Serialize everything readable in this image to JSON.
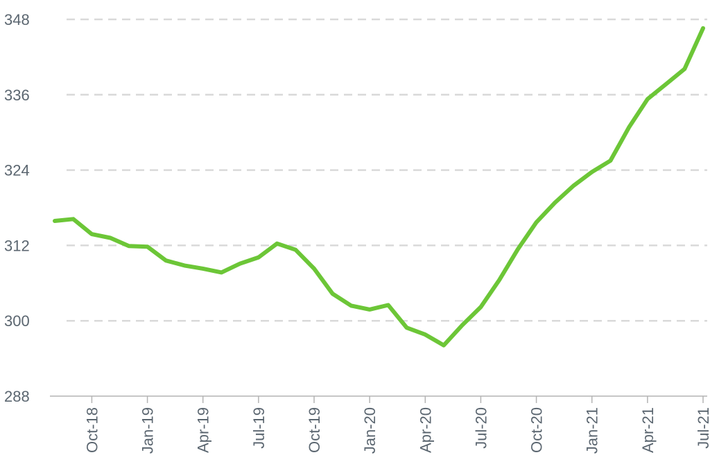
{
  "chart_data": {
    "type": "line",
    "title": "",
    "xlabel": "",
    "ylabel": "",
    "ylim": [
      288,
      348
    ],
    "yticks": [
      288,
      300,
      312,
      324,
      336,
      348
    ],
    "grid": true,
    "legend": "none",
    "xticks": [
      {
        "label": "Oct-18",
        "x": "2018-10"
      },
      {
        "label": "Jan-19",
        "x": "2019-01"
      },
      {
        "label": "Apr-19",
        "x": "2019-04"
      },
      {
        "label": "Jul-19",
        "x": "2019-07"
      },
      {
        "label": "Oct-19",
        "x": "2019-10"
      },
      {
        "label": "Jan-20",
        "x": "2020-01"
      },
      {
        "label": "Apr-20",
        "x": "2020-04"
      },
      {
        "label": "Jul-20",
        "x": "2020-07"
      },
      {
        "label": "Oct-20",
        "x": "2020-10"
      },
      {
        "label": "Jan-21",
        "x": "2021-01"
      },
      {
        "label": "Apr-21",
        "x": "2021-04"
      },
      {
        "label": "Jul-21",
        "x": "2021-07"
      }
    ],
    "series": [
      {
        "color": "#6cc637",
        "x": [
          "2018-08",
          "2018-09",
          "2018-10",
          "2018-11",
          "2018-12",
          "2019-01",
          "2019-02",
          "2019-03",
          "2019-04",
          "2019-05",
          "2019-06",
          "2019-07",
          "2019-08",
          "2019-09",
          "2019-10",
          "2019-11",
          "2019-12",
          "2020-01",
          "2020-02",
          "2020-03",
          "2020-04",
          "2020-05",
          "2020-06",
          "2020-07",
          "2020-08",
          "2020-09",
          "2020-10",
          "2020-11",
          "2020-12",
          "2021-01",
          "2021-02",
          "2021-03",
          "2021-04",
          "2021-05",
          "2021-06",
          "2021-07"
        ],
        "values": [
          315.9,
          316.2,
          313.8,
          313.2,
          311.9,
          311.8,
          309.6,
          308.8,
          308.3,
          307.7,
          309.1,
          310.1,
          312.3,
          311.3,
          308.3,
          304.3,
          302.4,
          301.8,
          302.5,
          298.9,
          297.8,
          296.1,
          299.3,
          302.2,
          306.5,
          311.4,
          315.7,
          318.8,
          321.5,
          323.7,
          325.5,
          330.8,
          335.3,
          337.7,
          340.1,
          346.6
        ]
      }
    ]
  }
}
